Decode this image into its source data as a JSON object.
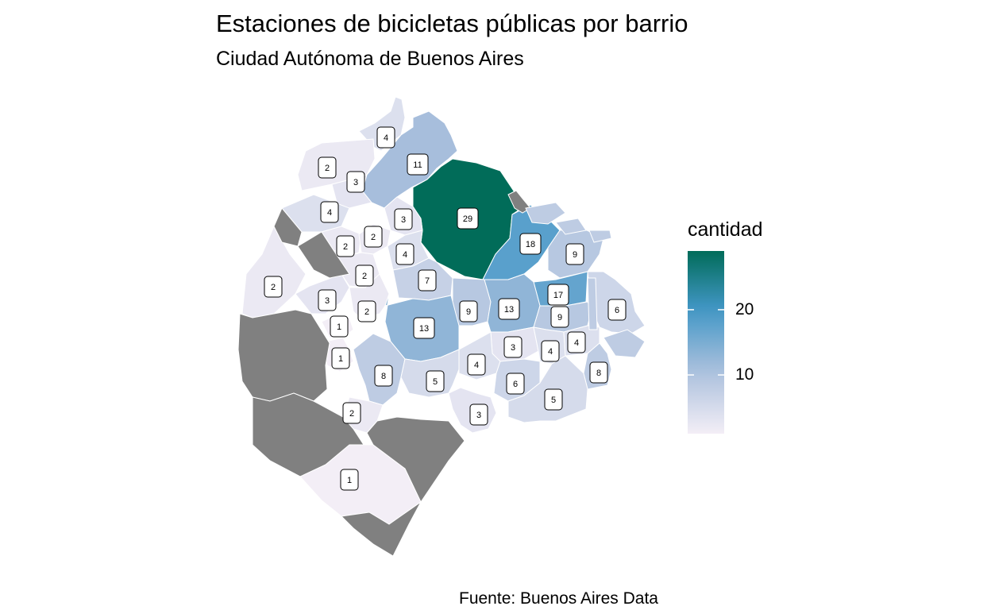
{
  "title": "Estaciones de bicicletas públicas por barrio",
  "subtitle": "Ciudad Autónoma de Buenos Aires",
  "caption": "Fuente: Buenos Aires Data",
  "colors": {
    "na_fill": "#808080",
    "low": "#f3eef6",
    "mid": "#a9bfdc",
    "high_mid": "#4297c7",
    "high": "#016c59",
    "border": "#ffffff"
  },
  "legend": {
    "title": "cantidad",
    "min": 1,
    "max": 29,
    "ticks": [
      {
        "value": 10,
        "label": "10"
      },
      {
        "value": 20,
        "label": "20"
      }
    ]
  },
  "chart_data": {
    "type": "choropleth",
    "value_name": "cantidad",
    "regions": [
      {
        "value": 4
      },
      {
        "value": 11
      },
      {
        "value": 2
      },
      {
        "value": 3
      },
      {
        "value": 29
      },
      {
        "value": 4
      },
      {
        "value": 3
      },
      {
        "value": 2
      },
      {
        "value": 2
      },
      {
        "value": 18
      },
      {
        "value": 4
      },
      {
        "value": 9
      },
      {
        "value": 2
      },
      {
        "value": 2
      },
      {
        "value": 7
      },
      {
        "value": 17
      },
      {
        "value": 3
      },
      {
        "value": 2
      },
      {
        "value": 9
      },
      {
        "value": 13
      },
      {
        "value": 6
      },
      {
        "value": 1
      },
      {
        "value": 13
      },
      {
        "value": 9
      },
      {
        "value": 3
      },
      {
        "value": 4
      },
      {
        "value": 1
      },
      {
        "value": 4
      },
      {
        "value": 8
      },
      {
        "value": 5
      },
      {
        "value": 4
      },
      {
        "value": 6
      },
      {
        "value": 8
      },
      {
        "value": 5
      },
      {
        "value": 2
      },
      {
        "value": 3
      },
      {
        "value": 1
      },
      {
        "value": null
      },
      {
        "value": null
      },
      {
        "value": null
      },
      {
        "value": null
      },
      {
        "value": null
      },
      {
        "value": null
      },
      {
        "value": null
      }
    ]
  }
}
